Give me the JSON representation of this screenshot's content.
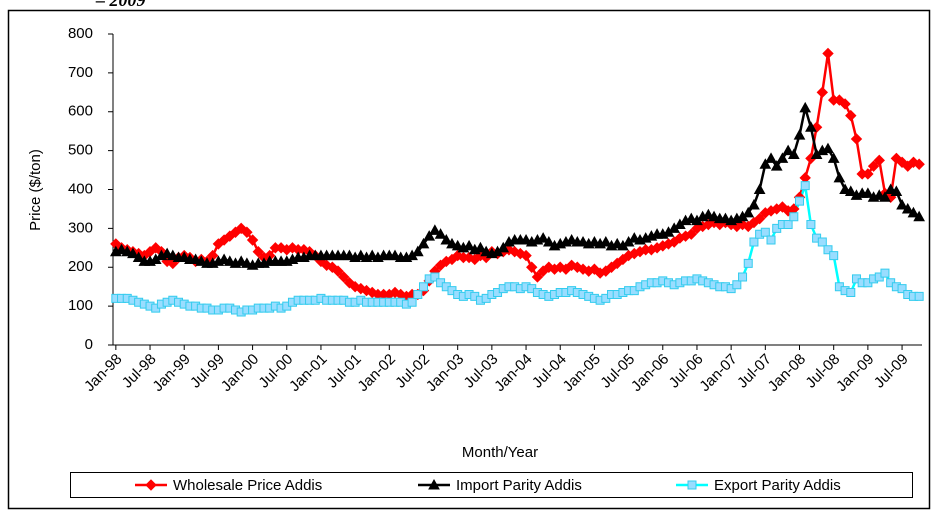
{
  "chart_data": {
    "type": "line",
    "title": "– 2009",
    "x_label": "Month/Year",
    "y_label": "Price ($/ton)",
    "ylim": [
      0,
      800
    ],
    "yticks": [
      0,
      100,
      200,
      300,
      400,
      500,
      600,
      700,
      800
    ],
    "grid": false,
    "legend": "bottom",
    "categories": [
      "Jan-98",
      null,
      null,
      null,
      null,
      null,
      "Jul-98",
      null,
      null,
      null,
      null,
      null,
      "Jan-99",
      null,
      null,
      null,
      null,
      null,
      "Jul-99",
      null,
      null,
      null,
      null,
      null,
      "Jan-00",
      null,
      null,
      null,
      null,
      null,
      "Jul-00",
      null,
      null,
      null,
      null,
      null,
      "Jan-01",
      null,
      null,
      null,
      null,
      null,
      "Jul-01",
      null,
      null,
      null,
      null,
      null,
      "Jan-02",
      null,
      null,
      null,
      null,
      null,
      "Jul-02",
      null,
      null,
      null,
      null,
      null,
      "Jan-03",
      null,
      null,
      null,
      null,
      null,
      "Jul-03",
      null,
      null,
      null,
      null,
      null,
      "Jan-04",
      null,
      null,
      null,
      null,
      null,
      "Jul-04",
      null,
      null,
      null,
      null,
      null,
      "Jan-05",
      null,
      null,
      null,
      null,
      null,
      "Jul-05",
      null,
      null,
      null,
      null,
      null,
      "Jan-06",
      null,
      null,
      null,
      null,
      null,
      "Jul-06",
      null,
      null,
      null,
      null,
      null,
      "Jan-07",
      null,
      null,
      null,
      null,
      null,
      "Jul-07",
      null,
      null,
      null,
      null,
      null,
      "Jan-08",
      null,
      null,
      null,
      null,
      null,
      "Jul-08",
      null,
      null,
      null,
      null,
      null,
      "Jan-09",
      null,
      null,
      null,
      null,
      null,
      "Jul-09",
      null,
      null,
      null
    ],
    "series": [
      {
        "name": "Wholesale Price Addis",
        "color": "#ff0000",
        "marker": "diamond",
        "values": [
          260,
          250,
          245,
          240,
          235,
          230,
          240,
          250,
          240,
          215,
          210,
          225,
          230,
          225,
          215,
          220,
          215,
          230,
          260,
          270,
          280,
          290,
          300,
          290,
          270,
          240,
          225,
          230,
          250,
          250,
          245,
          250,
          245,
          245,
          240,
          230,
          215,
          205,
          200,
          190,
          175,
          160,
          150,
          145,
          140,
          135,
          130,
          130,
          130,
          135,
          130,
          125,
          130,
          130,
          140,
          165,
          190,
          205,
          215,
          220,
          230,
          225,
          225,
          220,
          230,
          225,
          240,
          235,
          240,
          245,
          240,
          235,
          230,
          200,
          175,
          190,
          200,
          195,
          200,
          195,
          205,
          200,
          195,
          190,
          195,
          185,
          190,
          200,
          210,
          220,
          230,
          235,
          240,
          245,
          245,
          250,
          255,
          260,
          265,
          275,
          280,
          285,
          300,
          305,
          310,
          315,
          310,
          315,
          310,
          305,
          310,
          305,
          315,
          325,
          340,
          345,
          350,
          355,
          345,
          350,
          380,
          430,
          480,
          560,
          650,
          750,
          630,
          630,
          620,
          590,
          530,
          440,
          440,
          460,
          475,
          390,
          380,
          480,
          470,
          460,
          470,
          465
        ]
      },
      {
        "name": "Import Parity Addis",
        "color": "#000000",
        "marker": "triangle",
        "values": [
          240,
          245,
          240,
          235,
          225,
          215,
          215,
          220,
          230,
          235,
          230,
          225,
          225,
          220,
          220,
          215,
          210,
          210,
          215,
          220,
          215,
          210,
          215,
          210,
          205,
          210,
          210,
          215,
          215,
          215,
          215,
          220,
          225,
          225,
          230,
          230,
          230,
          230,
          230,
          230,
          230,
          230,
          225,
          230,
          225,
          230,
          225,
          230,
          230,
          230,
          225,
          225,
          230,
          240,
          260,
          280,
          295,
          285,
          270,
          260,
          255,
          250,
          255,
          245,
          250,
          240,
          235,
          240,
          250,
          265,
          270,
          270,
          270,
          265,
          270,
          275,
          265,
          255,
          260,
          265,
          270,
          265,
          265,
          260,
          265,
          260,
          265,
          255,
          260,
          255,
          265,
          275,
          270,
          275,
          280,
          285,
          285,
          290,
          300,
          310,
          320,
          325,
          320,
          330,
          335,
          330,
          325,
          325,
          320,
          325,
          330,
          340,
          360,
          400,
          465,
          480,
          460,
          480,
          500,
          490,
          540,
          610,
          560,
          490,
          500,
          505,
          480,
          430,
          400,
          395,
          385,
          390,
          390,
          380,
          385,
          380,
          400,
          395,
          360,
          350,
          340,
          330
        ]
      },
      {
        "name": "Export Parity Addis",
        "color": "#00ffff",
        "marker": "square",
        "values": [
          120,
          120,
          120,
          115,
          110,
          105,
          100,
          95,
          105,
          110,
          115,
          110,
          105,
          100,
          100,
          95,
          95,
          90,
          90,
          95,
          95,
          90,
          85,
          90,
          90,
          95,
          95,
          95,
          100,
          95,
          100,
          110,
          115,
          115,
          115,
          115,
          120,
          115,
          115,
          115,
          115,
          110,
          110,
          115,
          110,
          110,
          110,
          110,
          110,
          110,
          110,
          105,
          110,
          130,
          150,
          170,
          175,
          160,
          150,
          140,
          130,
          125,
          130,
          125,
          115,
          120,
          130,
          135,
          145,
          150,
          150,
          145,
          150,
          145,
          135,
          130,
          125,
          130,
          135,
          135,
          140,
          135,
          130,
          125,
          120,
          115,
          120,
          130,
          130,
          135,
          140,
          140,
          150,
          155,
          160,
          160,
          165,
          160,
          155,
          160,
          165,
          165,
          170,
          165,
          160,
          155,
          150,
          150,
          145,
          155,
          175,
          210,
          265,
          285,
          290,
          270,
          300,
          310,
          310,
          330,
          370,
          410,
          310,
          275,
          265,
          245,
          230,
          150,
          140,
          135,
          170,
          160,
          160,
          170,
          175,
          185,
          160,
          150,
          145,
          130,
          125,
          125
        ]
      }
    ]
  }
}
